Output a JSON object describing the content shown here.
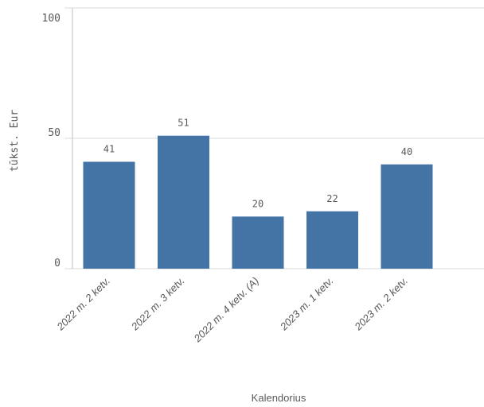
{
  "chart_data": {
    "type": "bar",
    "categories": [
      "2022 m. 2 ketv.",
      "2022 m. 3 ketv.",
      "2022 m. 4 ketv. (A)",
      "2023 m. 1 ketv.",
      "2023 m. 2 ketv."
    ],
    "values": [
      41,
      51,
      20,
      22,
      40
    ],
    "xlabel": "Kalendorius",
    "ylabel": "tūkst. Eur",
    "ylim": [
      0,
      100
    ],
    "yticks": [
      0,
      50,
      100
    ],
    "grid": true,
    "bar_color": "#4473A6"
  }
}
